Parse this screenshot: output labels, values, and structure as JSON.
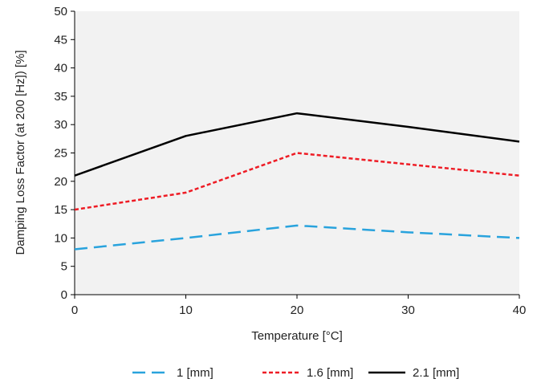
{
  "chart_data": {
    "type": "line",
    "x": [
      0,
      10,
      20,
      30,
      40
    ],
    "xlabel": "Temperature [°C]",
    "ylabel": "Damping Loss Factor (at 200 [Hz]) [%]",
    "xlim": [
      0,
      40
    ],
    "ylim": [
      0,
      50
    ],
    "xticks": [
      "0",
      "10",
      "20",
      "30",
      "40"
    ],
    "yticks": [
      "0",
      "5",
      "10",
      "15",
      "20",
      "25",
      "30",
      "35",
      "40",
      "45",
      "50"
    ],
    "grid": false,
    "legend_position": "bottom",
    "series": [
      {
        "name": "1 [mm]",
        "values": [
          8,
          10,
          12.2,
          11,
          10
        ],
        "color": "#29a3dd",
        "dash": "long-dash"
      },
      {
        "name": "1.6 [mm]",
        "values": [
          15,
          18,
          25,
          23,
          21
        ],
        "color": "#ee1c25",
        "dash": "short-dash"
      },
      {
        "name": "2.1 [mm]",
        "values": [
          21,
          28,
          32,
          29.6,
          27
        ],
        "color": "#000000",
        "dash": "solid"
      }
    ],
    "plot_background": "#f2f2f2"
  }
}
